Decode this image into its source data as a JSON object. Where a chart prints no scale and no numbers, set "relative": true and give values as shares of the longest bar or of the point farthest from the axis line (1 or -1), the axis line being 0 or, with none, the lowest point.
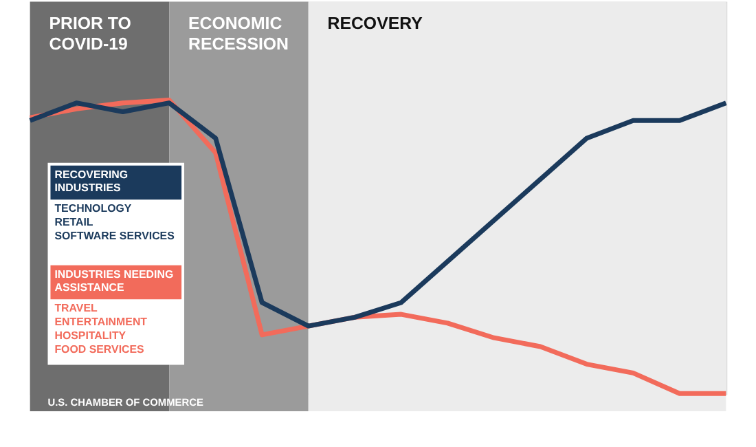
{
  "chart_data": {
    "type": "line",
    "relative": true,
    "categories": [
      null,
      null,
      null,
      null,
      null,
      null,
      null,
      null,
      null,
      null,
      null,
      null,
      null,
      null,
      null,
      null
    ],
    "tick_labels": false,
    "grid": false,
    "legend": "left",
    "line_style": "solid",
    "marker": "none",
    "series": [
      {
        "name": "RECOVERING INDUSTRIES",
        "color": "#1b3a5c",
        "values": [
          0.93,
          0.99,
          0.96,
          0.99,
          0.87,
          0.31,
          0.23,
          0.26,
          0.31,
          0.45,
          0.59,
          0.73,
          0.87,
          0.93,
          0.93,
          0.99
        ]
      },
      {
        "name": "INDUSTRIES NEEDING ASSISTANCE",
        "color": "#f26b5b",
        "values": [
          0.94,
          0.97,
          0.99,
          1,
          0.82,
          0.2,
          0.23,
          0.26,
          0.27,
          0.24,
          0.19,
          0.16,
          0.1,
          0.07,
          0,
          0
        ]
      }
    ],
    "annotations": [
      "PRIOR TO COVID-19",
      "ECONOMIC RECESSION",
      "RECOVERY",
      "TECHNOLOGY",
      "RETAIL",
      "SOFTWARE SERVICES",
      "TRAVEL",
      "ENTERTAINMENT",
      "HOSPITALITY",
      "FOOD SERVICES",
      "U.S. CHAMBER OF COMMERCE"
    ]
  }
}
